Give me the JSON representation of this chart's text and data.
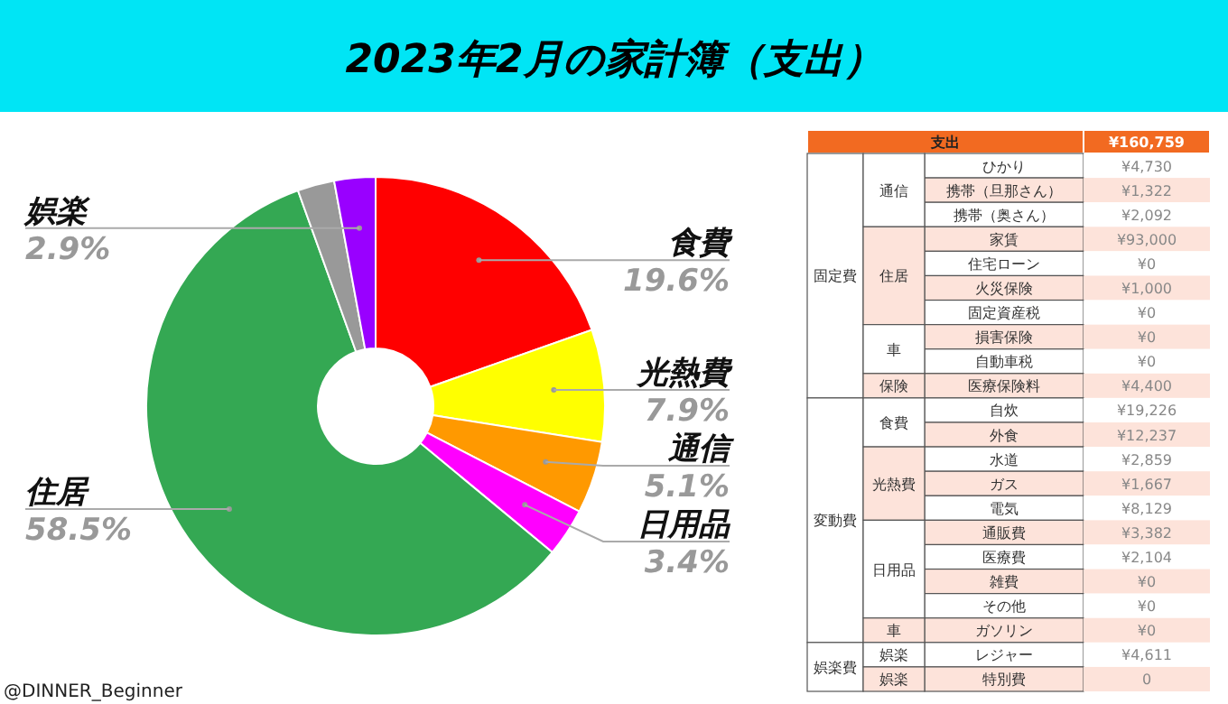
{
  "chart_data": [
    {
      "type": "donut",
      "title": "2023年2月の家計簿（支出）",
      "categories": [
        "食費",
        "光熱費",
        "通信",
        "日用品",
        "住居",
        null,
        "娯楽"
      ],
      "values": [
        19.6,
        7.9,
        5.1,
        3.4,
        58.5,
        2.6,
        2.9
      ],
      "colors": [
        "#ff0000",
        "#ffff00",
        "#ff9900",
        "#ff00ff",
        "#34a853",
        "#999999",
        "#9900ff"
      ],
      "value_labels": [
        "19.6%",
        "7.9%",
        "5.1%",
        "3.4%",
        "58.5%",
        null,
        "2.9%"
      ],
      "annotations": [
        "@DINNER_Beginner"
      ]
    },
    {
      "type": "other",
      "title": "支出",
      "subtitle": "¥160,759",
      "cells": [
        [
          "固定費",
          "通信",
          "ひかり",
          "¥4,730"
        ],
        [
          null,
          null,
          "携帯（旦那さん）",
          "¥1,322"
        ],
        [
          null,
          null,
          "携帯（奥さん）",
          "¥2,092"
        ],
        [
          null,
          "住居",
          "家賃",
          "¥93,000"
        ],
        [
          null,
          null,
          "住宅ローン",
          "¥0"
        ],
        [
          null,
          null,
          "火災保険",
          "¥1,000"
        ],
        [
          null,
          null,
          "固定資産税",
          "¥0"
        ],
        [
          null,
          "車",
          "損害保険",
          "¥0"
        ],
        [
          null,
          null,
          "自動車税",
          "¥0"
        ],
        [
          null,
          "保険",
          "医療保険料",
          "¥4,400"
        ],
        [
          "変動費",
          "食費",
          "自炊",
          "¥19,226"
        ],
        [
          null,
          null,
          "外食",
          "¥12,237"
        ],
        [
          null,
          "光熱費",
          "水道",
          "¥2,859"
        ],
        [
          null,
          null,
          "ガス",
          "¥1,667"
        ],
        [
          null,
          null,
          "電気",
          "¥8,129"
        ],
        [
          null,
          "日用品",
          "通販費",
          "¥3,382"
        ],
        [
          null,
          null,
          "医療費",
          "¥2,104"
        ],
        [
          null,
          null,
          "雑費",
          "¥0"
        ],
        [
          null,
          null,
          "その他",
          "¥0"
        ],
        [
          null,
          "車",
          "ガソリン",
          "¥0"
        ],
        [
          "娯楽費",
          "娯楽",
          "レジャー",
          "¥4,611"
        ],
        [
          null,
          "娯楽",
          "特別費",
          "0"
        ]
      ]
    }
  ]
}
